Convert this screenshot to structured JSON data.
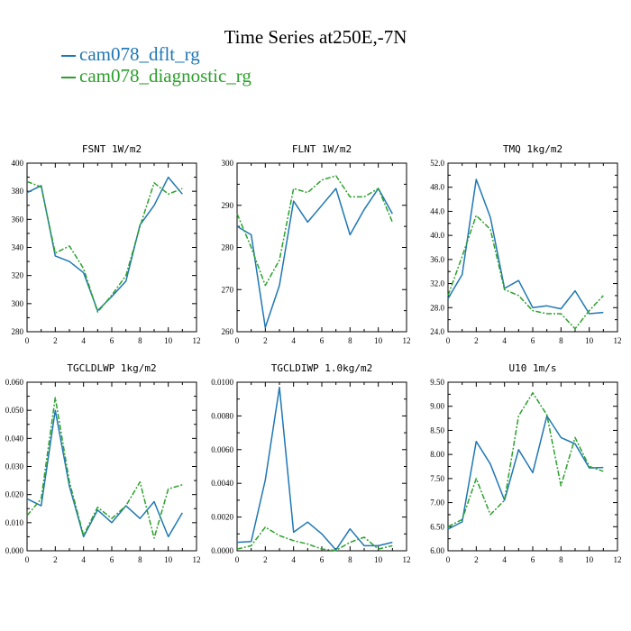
{
  "title": "Time Series at250E,-7N",
  "legend": [
    {
      "name": "cam078_dflt_rg",
      "color": "#1f77b4"
    },
    {
      "name": "cam078_diagnostic_rg",
      "color": "#2ca02c"
    }
  ],
  "chart_data": [
    {
      "type": "line",
      "title": "FSNT   1W/m2",
      "x": [
        0,
        1,
        2,
        3,
        4,
        5,
        6,
        7,
        8,
        9,
        10,
        11
      ],
      "xlim": [
        0,
        12
      ],
      "xticks": [
        "0",
        "2",
        "4",
        "6",
        "8",
        "10",
        "12"
      ],
      "ylim": [
        280,
        400
      ],
      "yticks": [
        "280",
        "300",
        "320",
        "340",
        "360",
        "380",
        "400"
      ],
      "series": [
        {
          "name": "cam078_dflt_rg",
          "values": [
            379,
            384,
            334,
            330,
            322,
            295,
            305,
            316,
            356,
            370,
            390,
            378
          ]
        },
        {
          "name": "cam078_diagnostic_rg",
          "values": [
            387,
            383,
            336,
            341,
            325,
            294,
            306,
            320,
            355,
            386,
            378,
            382
          ]
        }
      ]
    },
    {
      "type": "line",
      "title": "FLNT   1W/m2",
      "x": [
        0,
        1,
        2,
        3,
        4,
        5,
        6,
        7,
        8,
        9,
        10,
        11
      ],
      "xlim": [
        0,
        12
      ],
      "xticks": [
        "0",
        "2",
        "4",
        "6",
        "8",
        "10",
        "12"
      ],
      "ylim": [
        260,
        300
      ],
      "yticks": [
        "260",
        "270",
        "280",
        "290",
        "300"
      ],
      "series": [
        {
          "name": "cam078_dflt_rg",
          "values": [
            285,
            283,
            261,
            271,
            291,
            286,
            290,
            294,
            283,
            289,
            294,
            288
          ]
        },
        {
          "name": "cam078_diagnostic_rg",
          "values": [
            288,
            280,
            271,
            277,
            294,
            293,
            296,
            297,
            292,
            292,
            294,
            286
          ]
        }
      ]
    },
    {
      "type": "line",
      "title": "TMQ   1kg/m2",
      "x": [
        0,
        1,
        2,
        3,
        4,
        5,
        6,
        7,
        8,
        9,
        10,
        11
      ],
      "xlim": [
        0,
        12
      ],
      "xticks": [
        "0",
        "2",
        "4",
        "6",
        "8",
        "10",
        "12"
      ],
      "ylim": [
        24.0,
        52.0
      ],
      "yticks": [
        "24.0",
        "28.0",
        "32.0",
        "36.0",
        "40.0",
        "44.0",
        "48.0",
        "52.0"
      ],
      "series": [
        {
          "name": "cam078_dflt_rg",
          "values": [
            29.5,
            33.5,
            49.3,
            43.0,
            31.2,
            32.5,
            28.0,
            28.3,
            27.8,
            30.8,
            27.0,
            27.2
          ]
        },
        {
          "name": "cam078_diagnostic_rg",
          "values": [
            30.0,
            36.5,
            43.3,
            41.0,
            31.0,
            30.0,
            27.5,
            27.0,
            27.0,
            24.5,
            27.5,
            30.0
          ]
        }
      ]
    },
    {
      "type": "line",
      "title": "TGCLDLWP   1kg/m2",
      "x": [
        0,
        1,
        2,
        3,
        4,
        5,
        6,
        7,
        8,
        9,
        10,
        11
      ],
      "xlim": [
        0,
        12
      ],
      "xticks": [
        "0",
        "2",
        "4",
        "6",
        "8",
        "10",
        "12"
      ],
      "ylim": [
        0.0,
        0.06
      ],
      "yticks": [
        "0.000",
        "0.010",
        "0.020",
        "0.030",
        "0.040",
        "0.050",
        "0.060"
      ],
      "series": [
        {
          "name": "cam078_dflt_rg",
          "values": [
            0.0185,
            0.016,
            0.05,
            0.023,
            0.005,
            0.0145,
            0.01,
            0.016,
            0.0115,
            0.0175,
            0.005,
            0.0135
          ]
        },
        {
          "name": "cam078_diagnostic_rg",
          "values": [
            0.0125,
            0.0185,
            0.0545,
            0.0245,
            0.0055,
            0.0155,
            0.0115,
            0.016,
            0.0245,
            0.0045,
            0.022,
            0.0235
          ]
        }
      ]
    },
    {
      "type": "line",
      "title": "TGCLDIWP   1.0kg/m2",
      "x": [
        0,
        1,
        2,
        3,
        4,
        5,
        6,
        7,
        8,
        9,
        10,
        11
      ],
      "xlim": [
        0,
        12
      ],
      "xticks": [
        "0",
        "2",
        "4",
        "6",
        "8",
        "10",
        "12"
      ],
      "ylim": [
        0.0,
        0.01
      ],
      "yticks": [
        "0.0000",
        "0.0020",
        "0.0040",
        "0.0060",
        "0.0080",
        "0.0100"
      ],
      "series": [
        {
          "name": "cam078_dflt_rg",
          "values": [
            0.0005,
            0.00055,
            0.0042,
            0.0097,
            0.0011,
            0.0017,
            0.001,
            5e-05,
            0.0013,
            0.0003,
            0.0003,
            0.0005
          ]
        },
        {
          "name": "cam078_diagnostic_rg",
          "values": [
            0.0001,
            0.0003,
            0.0014,
            0.0009,
            0.0006,
            0.0004,
            0.0001,
            2e-05,
            0.0005,
            0.0008,
            0.0001,
            0.0003
          ]
        }
      ]
    },
    {
      "type": "line",
      "title": "U10   1m/s",
      "x": [
        0,
        1,
        2,
        3,
        4,
        5,
        6,
        7,
        8,
        9,
        10,
        11
      ],
      "xlim": [
        0,
        12
      ],
      "xticks": [
        "0",
        "2",
        "4",
        "6",
        "8",
        "10",
        "12"
      ],
      "ylim": [
        6.0,
        9.5
      ],
      "yticks": [
        "6.00",
        "6.50",
        "7.00",
        "7.50",
        "8.00",
        "8.50",
        "9.00",
        "9.50"
      ],
      "series": [
        {
          "name": "cam078_dflt_rg",
          "values": [
            6.45,
            6.6,
            8.27,
            7.8,
            7.05,
            8.1,
            7.62,
            8.8,
            8.35,
            8.22,
            7.72,
            7.73
          ]
        },
        {
          "name": "cam078_diagnostic_rg",
          "values": [
            6.5,
            6.65,
            7.5,
            6.75,
            7.05,
            8.8,
            9.28,
            8.82,
            7.35,
            8.35,
            7.75,
            7.65
          ]
        }
      ]
    }
  ]
}
